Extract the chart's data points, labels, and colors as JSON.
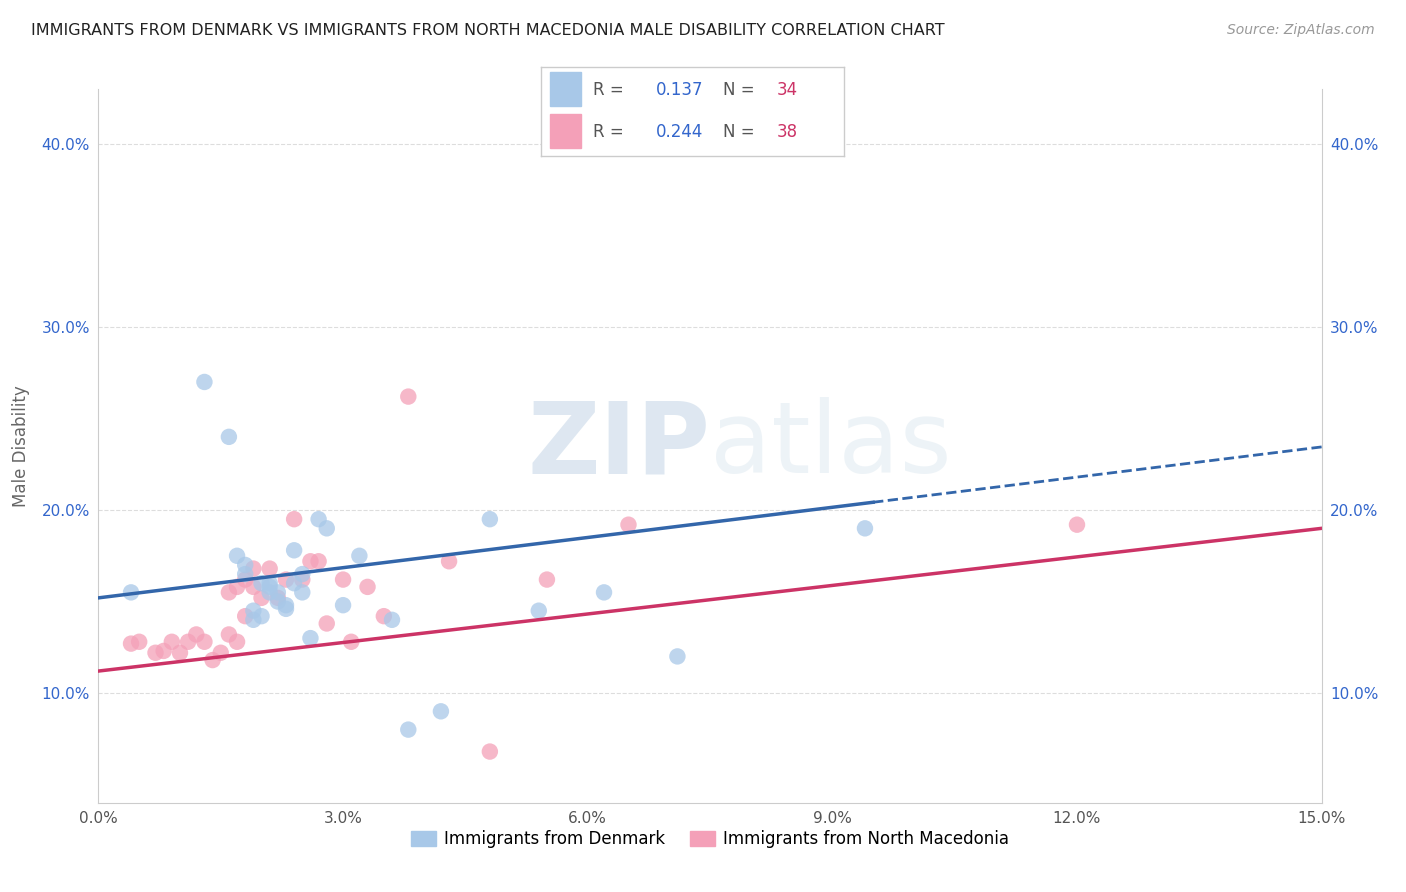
{
  "title": "IMMIGRANTS FROM DENMARK VS IMMIGRANTS FROM NORTH MACEDONIA MALE DISABILITY CORRELATION CHART",
  "source": "Source: ZipAtlas.com",
  "ylabel": "Male Disability",
  "xlim": [
    0.0,
    0.15
  ],
  "ylim": [
    0.04,
    0.43
  ],
  "xticks": [
    0.0,
    0.03,
    0.06,
    0.09,
    0.12,
    0.15
  ],
  "yticks": [
    0.1,
    0.2,
    0.3,
    0.4
  ],
  "ytick_labels": [
    "10.0%",
    "20.0%",
    "30.0%",
    "40.0%"
  ],
  "xtick_labels": [
    "0.0%",
    "3.0%",
    "6.0%",
    "9.0%",
    "12.0%",
    "15.0%"
  ],
  "denmark_R": 0.137,
  "denmark_N": 34,
  "macedonia_R": 0.244,
  "macedonia_N": 38,
  "denmark_color": "#a8c8e8",
  "macedonia_color": "#f4a0b8",
  "denmark_line_color": "#3366aa",
  "macedonia_line_color": "#cc3366",
  "legend_R_color": "#3366cc",
  "legend_N_color": "#cc3366",
  "watermark_zip": "ZIP",
  "watermark_atlas": "atlas",
  "denmark_scatter_x": [
    0.004,
    0.013,
    0.016,
    0.017,
    0.018,
    0.018,
    0.019,
    0.019,
    0.02,
    0.02,
    0.021,
    0.021,
    0.021,
    0.022,
    0.022,
    0.023,
    0.023,
    0.024,
    0.024,
    0.025,
    0.025,
    0.026,
    0.027,
    0.028,
    0.03,
    0.032,
    0.036,
    0.038,
    0.042,
    0.048,
    0.054,
    0.062,
    0.071,
    0.094
  ],
  "denmark_scatter_y": [
    0.155,
    0.27,
    0.24,
    0.175,
    0.165,
    0.17,
    0.14,
    0.145,
    0.142,
    0.16,
    0.158,
    0.155,
    0.16,
    0.155,
    0.15,
    0.148,
    0.146,
    0.178,
    0.16,
    0.155,
    0.165,
    0.13,
    0.195,
    0.19,
    0.148,
    0.175,
    0.14,
    0.08,
    0.09,
    0.195,
    0.145,
    0.155,
    0.12,
    0.19
  ],
  "macedonia_scatter_x": [
    0.004,
    0.005,
    0.007,
    0.008,
    0.009,
    0.01,
    0.011,
    0.012,
    0.013,
    0.014,
    0.015,
    0.016,
    0.016,
    0.017,
    0.017,
    0.018,
    0.018,
    0.019,
    0.019,
    0.02,
    0.021,
    0.022,
    0.023,
    0.024,
    0.025,
    0.026,
    0.027,
    0.028,
    0.03,
    0.031,
    0.033,
    0.035,
    0.038,
    0.043,
    0.048,
    0.055,
    0.065,
    0.12
  ],
  "macedonia_scatter_y": [
    0.127,
    0.128,
    0.122,
    0.123,
    0.128,
    0.122,
    0.128,
    0.132,
    0.128,
    0.118,
    0.122,
    0.132,
    0.155,
    0.128,
    0.158,
    0.142,
    0.162,
    0.168,
    0.158,
    0.152,
    0.168,
    0.152,
    0.162,
    0.195,
    0.162,
    0.172,
    0.172,
    0.138,
    0.162,
    0.128,
    0.158,
    0.142,
    0.262,
    0.172,
    0.068,
    0.162,
    0.192,
    0.192
  ],
  "background_color": "#ffffff",
  "grid_color": "#dddddd",
  "grid_style": "--"
}
